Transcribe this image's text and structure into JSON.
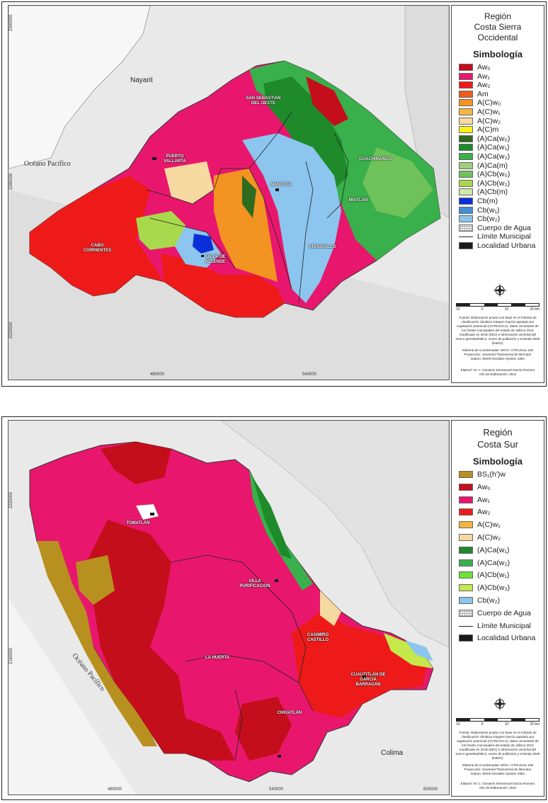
{
  "top": {
    "title": "Región\nCosta Sierra\nOccidental",
    "legend_title": "Simbología",
    "legend": [
      {
        "label": "Aw₀",
        "color": "#c40e1c"
      },
      {
        "label": "Aw₁",
        "color": "#e8176d"
      },
      {
        "label": "Aw₂",
        "color": "#ee1a1a"
      },
      {
        "label": "Am",
        "color": "#f25a1a"
      },
      {
        "label": "A(C)w₀",
        "color": "#f39321"
      },
      {
        "label": "A(C)w₁",
        "color": "#f3b640"
      },
      {
        "label": "A(C)w₂",
        "color": "#f6d9a0"
      },
      {
        "label": "A(C)m",
        "color": "#f8f21a"
      },
      {
        "label": "(A)Ca(w₀)",
        "color": "#2e6b1f"
      },
      {
        "label": "(A)Ca(w₁)",
        "color": "#1e8a2a"
      },
      {
        "label": "(A)Ca(w₂)",
        "color": "#39b04b"
      },
      {
        "label": "(A)Ca(m)",
        "color": "#9fcf7e"
      },
      {
        "label": "(A)Cb(w₀)",
        "color": "#6fc25a"
      },
      {
        "label": "(A)Cb(w₂)",
        "color": "#a8d84b"
      },
      {
        "label": "(A)Cb(m)",
        "color": "#cdeaa8"
      },
      {
        "label": "Cb(m)",
        "color": "#0a2fd8"
      },
      {
        "label": "Cb(w₁)",
        "color": "#3f8fd6"
      },
      {
        "label": "Cb(w₂)",
        "color": "#8cc5ee"
      },
      {
        "label": "Cuerpo de Agua",
        "color": "water"
      },
      {
        "label": "Límite Municipal",
        "color": "line"
      },
      {
        "label": "Localidad Urbana",
        "color": "#1a1a1a"
      }
    ],
    "places": [
      "SAN SEBASTIÁN DEL OESTE",
      "PUERTO VALLARTA",
      "MASCOTA",
      "GUACHINANGO",
      "MIXTLÁN",
      "CABO CORRIENTES",
      "TALPA DE ALLENDE",
      "ATENGUILLO"
    ],
    "states": [
      "Nayarit"
    ],
    "ocean": "Océano Pacífico",
    "x_coords": [
      "480000",
      "540000"
    ],
    "y_coords": [
      "2340000",
      "2280000",
      "2220000"
    ],
    "scale_ticks": [
      "10",
      "0",
      "10",
      "20 km"
    ],
    "source": "Fuente: Elaboración propia con base en el método de clasificación climática Köppen-García ajustado por vegetación potencial (COTECOCA), datos vectoriales de los límites municipales del estado de Jalisco 2012 modificado en 2016 (IIEG) e información vectorial del marco geoestadístico, censo de población y vivienda 2020 (INEGI).",
    "crs": "Sistema de Coordenadas: WGS / UTM Zona 13N\nProyección: Universal Transversal de Mercator\nDatum: World Geodetic System 1984",
    "author": "Elaboró: M. C. Giovanni Emmanuel García Romero\nAño de Elaboración: 2021"
  },
  "bottom": {
    "title": "Región\nCosta Sur",
    "legend_title": "Simbología",
    "legend": [
      {
        "label": "BS₁(h')w",
        "color": "#b8901f"
      },
      {
        "label": "Aw₀",
        "color": "#c40e1c"
      },
      {
        "label": "Aw₁",
        "color": "#e8176d"
      },
      {
        "label": "Aw₂",
        "color": "#ee1a1a"
      },
      {
        "label": "A(C)w₁",
        "color": "#f3b640"
      },
      {
        "label": "A(C)w₂",
        "color": "#f6d9a0"
      },
      {
        "label": "(A)Ca(w₁)",
        "color": "#1e8a2a"
      },
      {
        "label": "(A)Ca(w₂)",
        "color": "#39b04b"
      },
      {
        "label": "(A)Cb(w₁)",
        "color": "#6fe03a"
      },
      {
        "label": "(A)Cb(w₂)",
        "color": "#c5e84b"
      },
      {
        "label": "Cb(w₂)",
        "color": "#8cc5ee"
      },
      {
        "label": "Cuerpo de Agua",
        "color": "water"
      },
      {
        "label": "Límite Municipal",
        "color": "line"
      },
      {
        "label": "Localidad Urbana",
        "color": "#1a1a1a"
      }
    ],
    "places": [
      "TOMATLÁN",
      "VILLA PURIFICACIÓN",
      "CASIMIRO CASTILLO",
      "LA HUERTA",
      "CUAUTITLÁN DE GARCÍA BARRAGÁN",
      "CIHUATLÁN"
    ],
    "states": [
      "Colima"
    ],
    "ocean": "Océano Pacífico",
    "x_coords": [
      "480000",
      "540000",
      "600000"
    ],
    "y_coords": [
      "2220000",
      "2160000"
    ],
    "scale_ticks": [
      "10",
      "0",
      "10",
      "20 km"
    ],
    "source": "Fuente: Elaboración propia con base en el método de clasificación climática Köppen-García ajustado por vegetación potencial (COTECOCA), datos vectoriales de los límites municipales del estado de Jalisco 2012 modificado en 2016 (IIEG) e información vectorial del marco geoestadístico, censo de población y vivienda 2020 (INEGI).",
    "crs": "Sistema de Coordenadas: WGS / UTM Zona 13N\nProyección: Universal Transversal de Mercator\nDatum: World Geodetic System 1984",
    "author": "Elaboró: M. C. Giovanni Emmanuel García Romero\nAño de Elaboración: 2021"
  }
}
